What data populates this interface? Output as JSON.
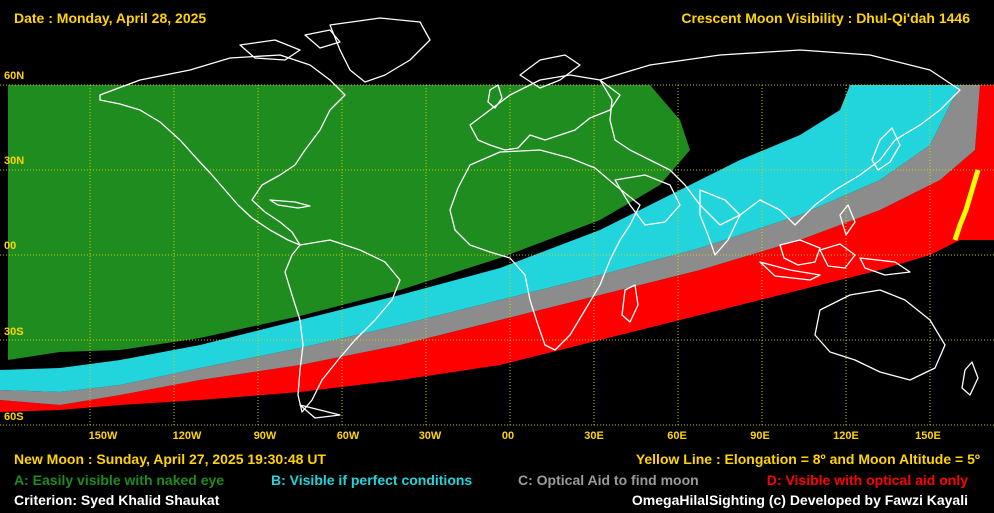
{
  "header": {
    "date": "Date : Monday, April 28, 2025",
    "title": "Crescent Moon Visibility : Dhul-Qi'dah  1446"
  },
  "axes": {
    "lat_labels": [
      "60N",
      "30N",
      "00",
      "30S",
      "60S"
    ],
    "lon_labels": [
      "150W",
      "120W",
      "90W",
      "60W",
      "30W",
      "00",
      "30E",
      "60E",
      "90E",
      "120E",
      "150E"
    ]
  },
  "footer": {
    "new_moon": "New Moon : Sunday, April 27, 2025  19:30:48  UT",
    "yellow_line": "Yellow Line : Elongation = 8º  and Moon Altitude = 5º",
    "legend_a": "A: Easily visible with naked eye",
    "legend_b": "B: Visible if perfect conditions",
    "legend_c": "C: Optical Aid to find moon",
    "legend_d": "D: Visible with optical aid only",
    "criterion": "Criterion: Syed Khalid Shaukat",
    "credit": "OmegaHilalSighting  (c)  Developed by Fawzi Kayali"
  },
  "colors": {
    "zone_a": "#1e8c1e",
    "zone_b": "#22d4dc",
    "zone_c": "#8c8c8c",
    "zone_d": "#ff0000",
    "yellow_line": "#ffff00",
    "grid": "#d8d800",
    "label": "#ffd400",
    "background": "#000000"
  }
}
